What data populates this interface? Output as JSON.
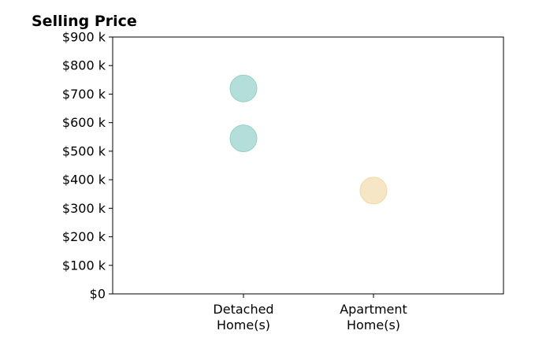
{
  "chart_data": {
    "type": "scatter",
    "title": "Selling Price",
    "xlabel": "",
    "ylabel": "",
    "categories": [
      [
        "Detached",
        "Home(s)"
      ],
      [
        "Apartment",
        "Home(s)"
      ]
    ],
    "ylim": [
      0,
      900
    ],
    "yticks": [
      0,
      100,
      200,
      300,
      400,
      500,
      600,
      700,
      800,
      900
    ],
    "ytick_labels": [
      "$0",
      "$100 k",
      "$200 k",
      "$300 k",
      "$400 k",
      "$500 k",
      "$600 k",
      "$700 k",
      "$800 k",
      "$900 k"
    ],
    "grid": false,
    "points": [
      {
        "category": 0,
        "value": 720,
        "color": "#b3deda"
      },
      {
        "category": 0,
        "value": 545,
        "color": "#b3deda"
      },
      {
        "category": 1,
        "value": 362,
        "color": "#f7e6c5"
      }
    ],
    "colors": {
      "detached_fill": "#b3deda",
      "detached_edge": "#96cfc9",
      "apartment_fill": "#f7e6c5",
      "apartment_edge": "#f0d9a8",
      "axis": "#000000"
    }
  }
}
